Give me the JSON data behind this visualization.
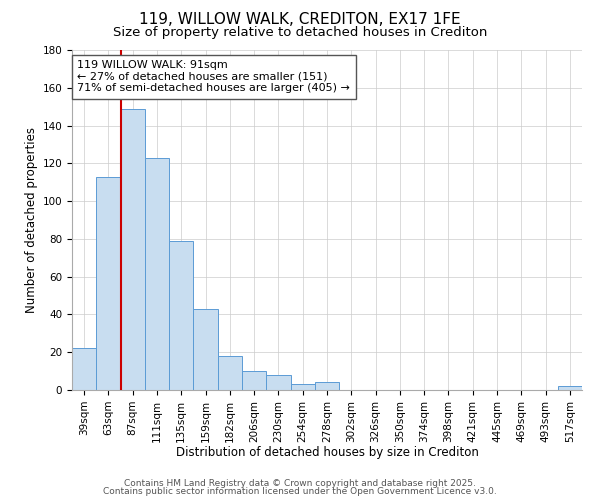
{
  "title": "119, WILLOW WALK, CREDITON, EX17 1FE",
  "subtitle": "Size of property relative to detached houses in Crediton",
  "xlabel": "Distribution of detached houses by size in Crediton",
  "ylabel": "Number of detached properties",
  "bar_labels": [
    "39sqm",
    "63sqm",
    "87sqm",
    "111sqm",
    "135sqm",
    "159sqm",
    "182sqm",
    "206sqm",
    "230sqm",
    "254sqm",
    "278sqm",
    "302sqm",
    "326sqm",
    "350sqm",
    "374sqm",
    "398sqm",
    "421sqm",
    "445sqm",
    "469sqm",
    "493sqm",
    "517sqm"
  ],
  "bar_values": [
    22,
    113,
    149,
    123,
    79,
    43,
    18,
    10,
    8,
    3,
    4,
    0,
    0,
    0,
    0,
    0,
    0,
    0,
    0,
    0,
    2
  ],
  "bar_color": "#c8ddf0",
  "bar_edge_color": "#5b9bd5",
  "ylim": [
    0,
    180
  ],
  "yticks": [
    0,
    20,
    40,
    60,
    80,
    100,
    120,
    140,
    160,
    180
  ],
  "vline_index": 2,
  "vline_color": "#cc0000",
  "annotation_title": "119 WILLOW WALK: 91sqm",
  "annotation_line1": "← 27% of detached houses are smaller (151)",
  "annotation_line2": "71% of semi-detached houses are larger (405) →",
  "footer1": "Contains HM Land Registry data © Crown copyright and database right 2025.",
  "footer2": "Contains public sector information licensed under the Open Government Licence v3.0.",
  "bg_color": "#ffffff",
  "grid_color": "#cccccc",
  "title_fontsize": 11,
  "subtitle_fontsize": 9.5,
  "axis_label_fontsize": 8.5,
  "tick_fontsize": 7.5,
  "annotation_fontsize": 8,
  "footer_fontsize": 6.5
}
